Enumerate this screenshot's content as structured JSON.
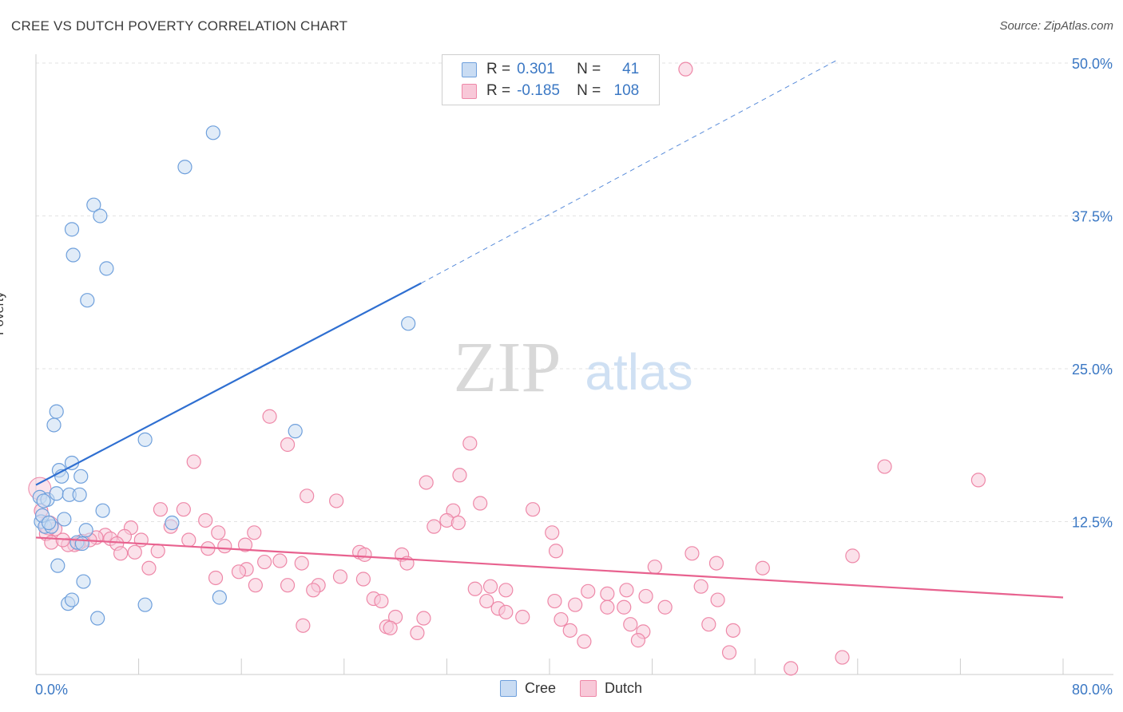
{
  "chart_data": {
    "type": "scatter",
    "title": "CREE VS DUTCH POVERTY CORRELATION CHART",
    "source": "Source: ZipAtlas.com",
    "xlabel": "",
    "ylabel": "Poverty",
    "xlim": [
      0,
      80
    ],
    "ylim": [
      0,
      50
    ],
    "x_tick_labels": [
      "0.0%",
      "80.0%"
    ],
    "y_tick_labels": [
      "12.5%",
      "25.0%",
      "37.5%",
      "50.0%"
    ],
    "y_ticks": [
      12.5,
      25.0,
      37.5,
      50.0
    ],
    "watermark": "ZIPatlas",
    "legend": {
      "rows": [
        {
          "name": "Cree",
          "r_label": "R =",
          "r_value": "0.301",
          "n_label": "N =",
          "n_value": "41"
        },
        {
          "name": "Dutch",
          "r_label": "R =",
          "r_value": "-0.185",
          "n_label": "N =",
          "n_value": "108"
        }
      ]
    },
    "series": [
      {
        "name": "Cree",
        "color": "#6fa0dc",
        "fill": "#c9dcf3",
        "trend": {
          "x0": 0,
          "y0": 15.5,
          "x1": 30,
          "y1": 32.0,
          "dash_x1": 62.5,
          "dash_y1": 50.3,
          "color": "#2f6fd1"
        },
        "points": [
          [
            13.8,
            44.3
          ],
          [
            11.6,
            41.5
          ],
          [
            4.5,
            38.4
          ],
          [
            5.0,
            37.5
          ],
          [
            2.8,
            36.4
          ],
          [
            2.9,
            34.3
          ],
          [
            5.5,
            33.2
          ],
          [
            4.0,
            30.6
          ],
          [
            29.0,
            28.7
          ],
          [
            1.6,
            21.5
          ],
          [
            1.4,
            20.4
          ],
          [
            8.5,
            19.2
          ],
          [
            20.2,
            19.9
          ],
          [
            2.8,
            17.3
          ],
          [
            1.8,
            16.7
          ],
          [
            2.0,
            16.2
          ],
          [
            3.5,
            16.2
          ],
          [
            0.3,
            14.5
          ],
          [
            0.9,
            14.3
          ],
          [
            1.6,
            14.8
          ],
          [
            2.6,
            14.7
          ],
          [
            3.4,
            14.7
          ],
          [
            0.6,
            14.2
          ],
          [
            5.2,
            13.4
          ],
          [
            0.4,
            12.5
          ],
          [
            0.7,
            12.1
          ],
          [
            1.2,
            12.1
          ],
          [
            2.2,
            12.7
          ],
          [
            10.6,
            12.4
          ],
          [
            3.9,
            11.8
          ],
          [
            3.2,
            10.8
          ],
          [
            3.6,
            10.7
          ],
          [
            1.7,
            8.9
          ],
          [
            3.7,
            7.6
          ],
          [
            2.5,
            5.8
          ],
          [
            2.8,
            6.1
          ],
          [
            4.8,
            4.6
          ],
          [
            8.5,
            5.7
          ],
          [
            14.3,
            6.3
          ],
          [
            0.5,
            13.0
          ],
          [
            1.0,
            12.4
          ]
        ]
      },
      {
        "name": "Dutch",
        "color": "#ee88a8",
        "fill": "#f8c8d8",
        "trend": {
          "x0": 0,
          "y0": 11.2,
          "x1": 80,
          "y1": 6.3,
          "color": "#e8628f"
        },
        "points": [
          [
            50.6,
            49.5
          ],
          [
            18.2,
            21.1
          ],
          [
            19.6,
            18.8
          ],
          [
            33.8,
            18.9
          ],
          [
            12.3,
            17.4
          ],
          [
            66.1,
            17.0
          ],
          [
            73.4,
            15.9
          ],
          [
            33.0,
            16.3
          ],
          [
            30.4,
            15.7
          ],
          [
            21.1,
            14.6
          ],
          [
            23.4,
            14.2
          ],
          [
            34.6,
            14.0
          ],
          [
            38.7,
            13.5
          ],
          [
            32.5,
            13.4
          ],
          [
            9.7,
            13.5
          ],
          [
            11.5,
            13.5
          ],
          [
            32.0,
            12.6
          ],
          [
            32.9,
            12.4
          ],
          [
            31.0,
            12.1
          ],
          [
            13.2,
            12.6
          ],
          [
            14.2,
            11.6
          ],
          [
            17.0,
            11.6
          ],
          [
            7.4,
            12.0
          ],
          [
            10.5,
            12.1
          ],
          [
            40.2,
            11.6
          ],
          [
            6.9,
            11.3
          ],
          [
            8.2,
            11.0
          ],
          [
            11.9,
            11.0
          ],
          [
            5.4,
            11.4
          ],
          [
            4.7,
            11.2
          ],
          [
            5.8,
            11.1
          ],
          [
            4.2,
            11.0
          ],
          [
            3.6,
            10.9
          ],
          [
            3.3,
            10.7
          ],
          [
            3.0,
            10.6
          ],
          [
            2.5,
            10.6
          ],
          [
            6.3,
            10.7
          ],
          [
            7.7,
            10.0
          ],
          [
            9.5,
            10.1
          ],
          [
            14.7,
            10.5
          ],
          [
            13.4,
            10.3
          ],
          [
            16.3,
            10.6
          ],
          [
            25.2,
            10.0
          ],
          [
            25.6,
            9.8
          ],
          [
            28.5,
            9.8
          ],
          [
            40.5,
            10.1
          ],
          [
            51.1,
            9.9
          ],
          [
            63.6,
            9.7
          ],
          [
            6.6,
            9.9
          ],
          [
            8.8,
            8.7
          ],
          [
            17.8,
            9.2
          ],
          [
            19.0,
            9.3
          ],
          [
            20.7,
            9.1
          ],
          [
            28.9,
            9.1
          ],
          [
            48.2,
            8.8
          ],
          [
            53.0,
            9.1
          ],
          [
            56.6,
            8.7
          ],
          [
            16.4,
            8.6
          ],
          [
            15.8,
            8.4
          ],
          [
            14.0,
            7.9
          ],
          [
            23.7,
            8.0
          ],
          [
            25.5,
            7.8
          ],
          [
            19.6,
            7.3
          ],
          [
            17.1,
            7.3
          ],
          [
            22.0,
            7.3
          ],
          [
            21.6,
            6.9
          ],
          [
            35.4,
            7.2
          ],
          [
            36.6,
            6.9
          ],
          [
            34.2,
            7.0
          ],
          [
            43.0,
            6.8
          ],
          [
            46.0,
            6.9
          ],
          [
            44.5,
            6.6
          ],
          [
            51.8,
            7.2
          ],
          [
            47.5,
            6.4
          ],
          [
            53.1,
            6.1
          ],
          [
            26.3,
            6.2
          ],
          [
            26.9,
            6.0
          ],
          [
            35.1,
            6.0
          ],
          [
            40.4,
            6.0
          ],
          [
            42.0,
            5.7
          ],
          [
            44.5,
            5.5
          ],
          [
            45.8,
            5.5
          ],
          [
            49.0,
            5.5
          ],
          [
            36.0,
            5.4
          ],
          [
            36.6,
            5.1
          ],
          [
            30.2,
            4.6
          ],
          [
            28.0,
            4.7
          ],
          [
            37.9,
            4.7
          ],
          [
            40.9,
            4.5
          ],
          [
            46.3,
            4.1
          ],
          [
            52.4,
            4.1
          ],
          [
            20.8,
            4.0
          ],
          [
            27.3,
            3.9
          ],
          [
            27.6,
            3.8
          ],
          [
            41.6,
            3.6
          ],
          [
            47.3,
            3.5
          ],
          [
            54.3,
            3.6
          ],
          [
            29.7,
            3.4
          ],
          [
            42.7,
            2.7
          ],
          [
            46.9,
            2.8
          ],
          [
            54.0,
            1.8
          ],
          [
            62.8,
            1.4
          ],
          [
            58.8,
            0.5
          ],
          [
            0.8,
            11.5
          ],
          [
            1.2,
            10.8
          ],
          [
            1.5,
            11.9
          ],
          [
            0.4,
            13.4
          ],
          [
            2.1,
            11.0
          ]
        ]
      }
    ]
  }
}
